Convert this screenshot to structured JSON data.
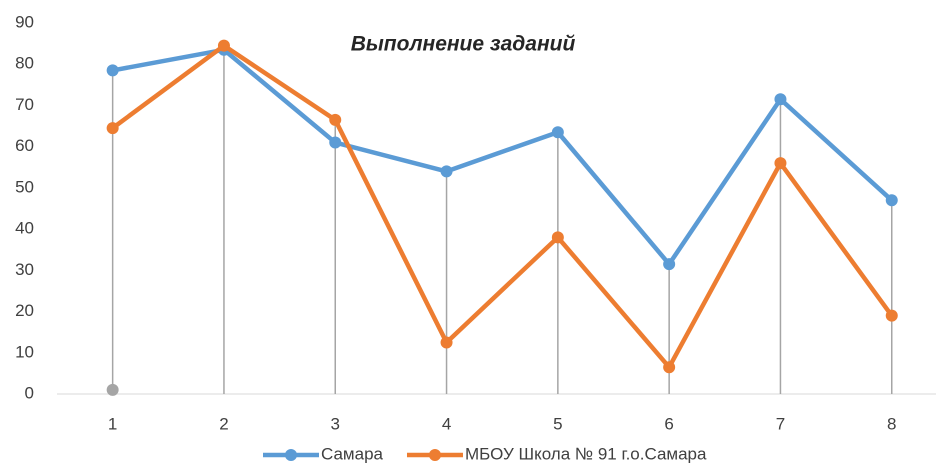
{
  "chart_data": {
    "type": "line",
    "title": "Выполнение заданий",
    "categories": [
      "1",
      "2",
      "3",
      "4",
      "5",
      "6",
      "7",
      "8"
    ],
    "series": [
      {
        "name": "Самара",
        "color": "#5b9bd5",
        "values": [
          78.5,
          83.5,
          61,
          54,
          63.5,
          31.5,
          71.5,
          47
        ]
      },
      {
        "name": "МБОУ Школа № 91 г.о.Самара",
        "color": "#ed7d31",
        "values": [
          64.5,
          84.5,
          66.5,
          12.5,
          38,
          6.5,
          56,
          19
        ]
      },
      {
        "color": "#a5a5a5",
        "values": [
          1,
          null,
          null,
          null,
          null,
          null,
          null,
          null
        ]
      }
    ],
    "ylim": [
      0,
      90
    ],
    "yticks": [
      0,
      10,
      20,
      30,
      40,
      50,
      60,
      70,
      80,
      90
    ],
    "drop_lines": true,
    "legend": "bottom"
  }
}
